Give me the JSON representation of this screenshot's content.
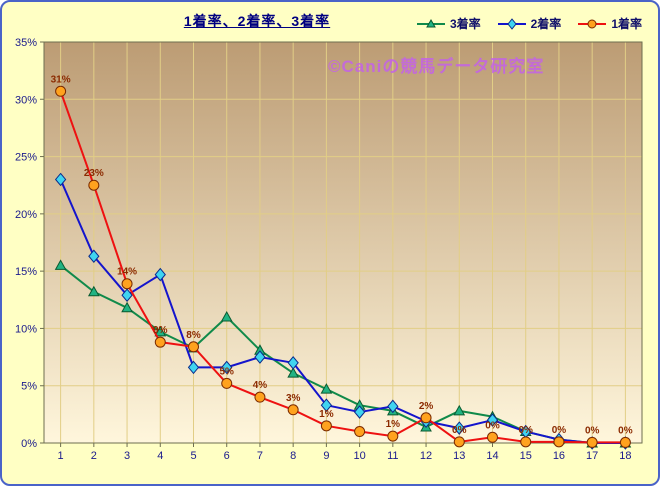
{
  "title": "1着率、2着率、3着率",
  "title_color": "#000080",
  "watermark": "©Caniの競馬データ研究室",
  "watermark_color": "#C462E8",
  "frame": {
    "background": "#FFFFC4",
    "border_color": "#4A63C8"
  },
  "chart_data": {
    "type": "line",
    "title": "1着率、2着率、3着率",
    "categories": [
      "1",
      "2",
      "3",
      "4",
      "5",
      "6",
      "7",
      "8",
      "9",
      "10",
      "11",
      "12",
      "13",
      "14",
      "15",
      "16",
      "17",
      "18"
    ],
    "y_ticks": [
      "0%",
      "5%",
      "10%",
      "15%",
      "20%",
      "25%",
      "30%",
      "35%"
    ],
    "ylim": [
      0,
      35
    ],
    "grid": true,
    "legend_position": "top-right",
    "axis_text_color": "#1A1A8C",
    "label_color": "#8B2A00",
    "plot_gradient": [
      "#BC9C74",
      "#FFF6DC"
    ],
    "grid_color": "#E2CE86",
    "plot_border": "#6E6E50",
    "legend_text_color": "#10106A",
    "series": [
      {
        "name": "3着率",
        "marker": "triangle",
        "line_color": "#108A4A",
        "marker_fill": "#21B383",
        "marker_stroke": "#0A5A30",
        "values": [
          15.5,
          13.2,
          11.8,
          9.7,
          8.3,
          11.0,
          8.1,
          6.1,
          4.7,
          3.3,
          2.8,
          1.4,
          2.8,
          2.3,
          1.0,
          0.3,
          0,
          0
        ]
      },
      {
        "name": "2着率",
        "marker": "diamond",
        "line_color": "#1414CC",
        "marker_fill": "#3FD4F0",
        "marker_stroke": "#0A2A8C",
        "values": [
          23.0,
          16.3,
          12.9,
          14.7,
          6.6,
          6.6,
          7.5,
          7.0,
          3.3,
          2.7,
          3.2,
          1.9,
          1.3,
          2.0,
          1.0,
          0.3,
          0,
          0
        ]
      },
      {
        "name": "1着率",
        "marker": "circle",
        "line_color": "#EE1111",
        "marker_fill": "#FFA21E",
        "marker_stroke": "#7A2A00",
        "values": [
          30.7,
          22.5,
          13.9,
          8.8,
          8.4,
          5.2,
          4.0,
          2.9,
          1.5,
          1.0,
          0.6,
          2.2,
          0.1,
          0.5,
          0.1,
          0.1,
          0.05,
          0.05
        ],
        "point_labels": [
          "31%",
          "23%",
          "14%",
          "9%",
          "8%",
          "5%",
          "4%",
          "3%",
          "1%",
          "",
          "1%",
          "2%",
          "0%",
          "0%",
          "0%",
          "0%",
          "0%",
          "0%"
        ]
      }
    ]
  }
}
